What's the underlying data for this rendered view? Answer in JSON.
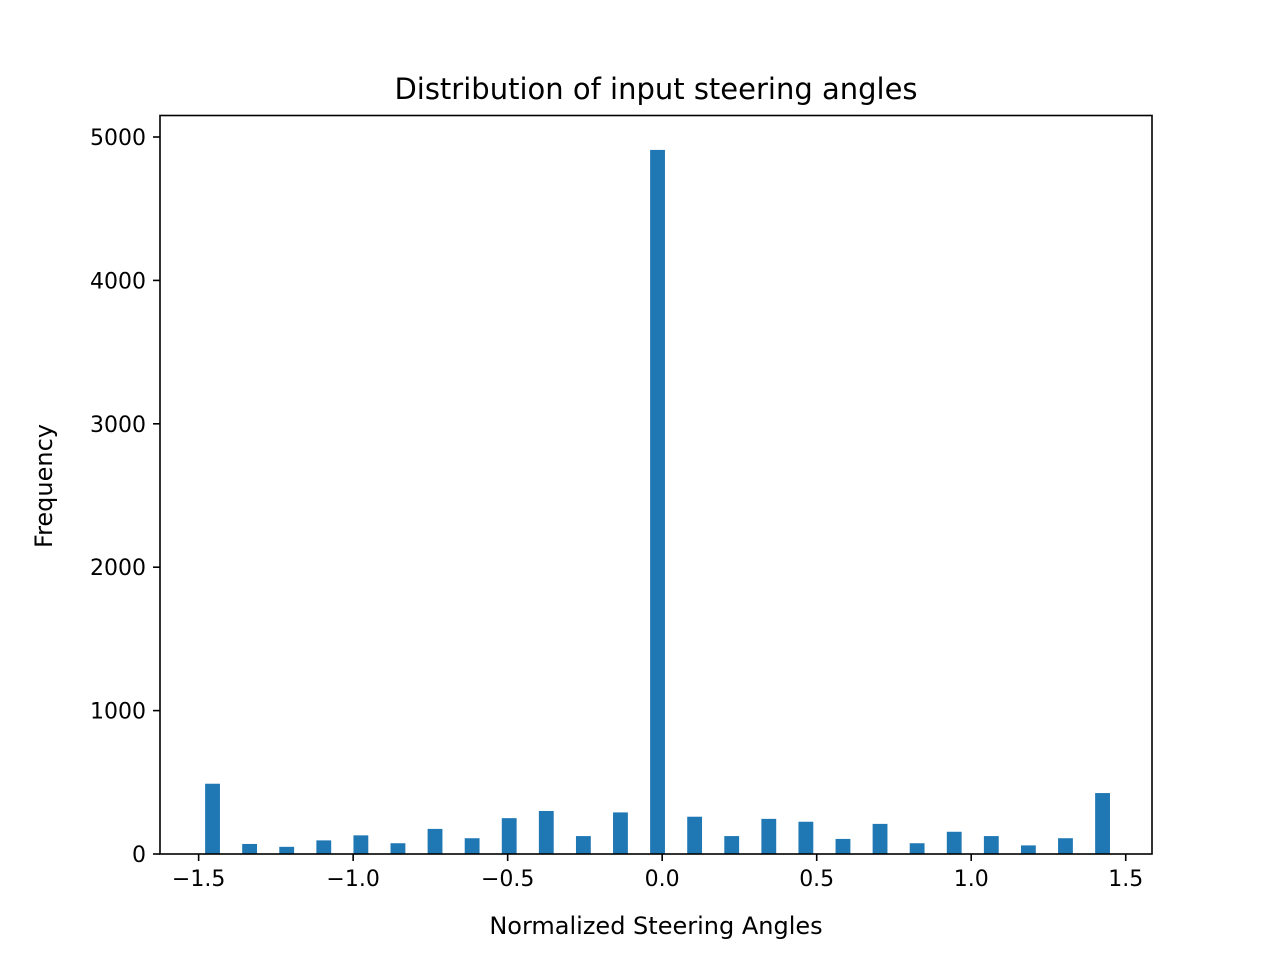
{
  "chart_data": {
    "type": "bar",
    "title": "Distribution of input steering angles",
    "xlabel": "Normalized Steering Angles",
    "ylabel": "Frequency",
    "xlim": [
      -1.625,
      1.585
    ],
    "ylim": [
      0,
      5150
    ],
    "grid": false,
    "bar_color": "#1f77b4",
    "bar_width": 0.048,
    "x": [
      -1.455,
      -1.335,
      -1.215,
      -1.095,
      -0.975,
      -0.855,
      -0.735,
      -0.615,
      -0.495,
      -0.375,
      -0.255,
      -0.135,
      -0.015,
      0.105,
      0.225,
      0.345,
      0.465,
      0.585,
      0.705,
      0.825,
      0.945,
      1.065,
      1.185,
      1.305,
      1.425
    ],
    "values": [
      490,
      70,
      50,
      95,
      130,
      75,
      175,
      110,
      250,
      300,
      125,
      290,
      4910,
      260,
      125,
      245,
      225,
      105,
      210,
      75,
      155,
      125,
      60,
      110,
      425
    ],
    "xticks": [
      {
        "value": -1.5,
        "label": "−1.5"
      },
      {
        "value": -1.0,
        "label": "−1.0"
      },
      {
        "value": -0.5,
        "label": "−0.5"
      },
      {
        "value": 0.0,
        "label": "0.0"
      },
      {
        "value": 0.5,
        "label": "0.5"
      },
      {
        "value": 1.0,
        "label": "1.0"
      },
      {
        "value": 1.5,
        "label": "1.5"
      }
    ],
    "yticks": [
      {
        "value": 0,
        "label": "0"
      },
      {
        "value": 1000,
        "label": "1000"
      },
      {
        "value": 2000,
        "label": "2000"
      },
      {
        "value": 3000,
        "label": "3000"
      },
      {
        "value": 4000,
        "label": "4000"
      },
      {
        "value": 5000,
        "label": "5000"
      }
    ]
  }
}
